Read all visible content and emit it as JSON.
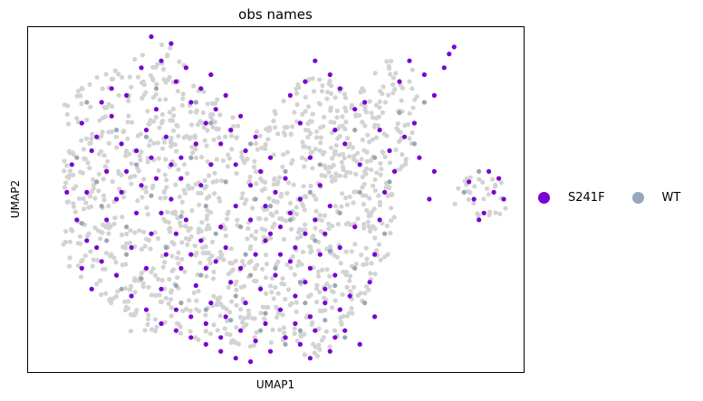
{
  "chart_data": {
    "type": "scatter",
    "title": "obs names",
    "xlabel": "UMAP1",
    "ylabel": "UMAP2",
    "xlim": [
      0,
      100
    ],
    "ylim": [
      0,
      100
    ],
    "grid": false,
    "ticks": false,
    "legend_position": "right",
    "series": [
      {
        "name": "WT",
        "color": "#96a8ba",
        "background_color": "#d3d3d3",
        "values": [
          [
            12,
            78
          ],
          [
            18,
            70
          ],
          [
            22,
            60
          ],
          [
            25,
            51
          ],
          [
            31,
            45
          ],
          [
            38,
            40
          ],
          [
            44,
            34
          ],
          [
            50,
            30
          ],
          [
            15,
            48
          ],
          [
            20,
            42
          ],
          [
            28,
            36
          ],
          [
            35,
            28
          ],
          [
            42,
            22
          ],
          [
            48,
            17
          ],
          [
            55,
            12
          ],
          [
            60,
            15
          ],
          [
            10,
            62
          ],
          [
            14,
            55
          ],
          [
            24,
            68
          ],
          [
            33,
            62
          ],
          [
            40,
            55
          ],
          [
            46,
            50
          ],
          [
            53,
            44
          ],
          [
            58,
            38
          ],
          [
            62,
            25
          ],
          [
            66,
            30
          ],
          [
            56,
            20
          ],
          [
            37,
            72
          ],
          [
            45,
            66
          ],
          [
            52,
            58
          ],
          [
            57,
            52
          ],
          [
            63,
            46
          ],
          [
            66,
            70
          ],
          [
            70,
            62
          ],
          [
            75,
            75
          ],
          [
            78,
            66
          ],
          [
            72,
            40
          ],
          [
            68,
            20
          ],
          [
            30,
            25
          ],
          [
            20,
            34
          ],
          [
            26,
            82
          ],
          [
            34,
            78
          ],
          [
            16,
            38
          ],
          [
            11,
            43
          ],
          [
            36,
            48
          ],
          [
            43,
            42
          ],
          [
            49,
            48
          ],
          [
            55,
            26
          ],
          [
            64,
            10
          ],
          [
            61,
            35
          ],
          [
            59,
            60
          ],
          [
            67,
            52
          ],
          [
            73,
            55
          ],
          [
            80,
            78
          ],
          [
            88,
            52
          ],
          [
            91,
            58
          ],
          [
            52,
            8
          ],
          [
            47,
            12
          ],
          [
            41,
            15
          ],
          [
            36,
            18
          ],
          [
            31,
            20
          ],
          [
            23,
            27
          ],
          [
            19,
            24
          ],
          [
            45,
            28
          ]
        ]
      },
      {
        "name": "S241F",
        "color": "#7b00d4",
        "values": [
          [
            11,
            72
          ],
          [
            13,
            64
          ],
          [
            16,
            58
          ],
          [
            19,
            52
          ],
          [
            22,
            46
          ],
          [
            25,
            40
          ],
          [
            28,
            34
          ],
          [
            31,
            30
          ],
          [
            34,
            25
          ],
          [
            37,
            20
          ],
          [
            40,
            16
          ],
          [
            43,
            12
          ],
          [
            46,
            9
          ],
          [
            49,
            6
          ],
          [
            52,
            10
          ],
          [
            55,
            8
          ],
          [
            58,
            12
          ],
          [
            61,
            6
          ],
          [
            63,
            18
          ],
          [
            60,
            24
          ],
          [
            57,
            30
          ],
          [
            54,
            36
          ],
          [
            51,
            42
          ],
          [
            48,
            48
          ],
          [
            45,
            54
          ],
          [
            42,
            60
          ],
          [
            39,
            66
          ],
          [
            36,
            72
          ],
          [
            33,
            78
          ],
          [
            30,
            84
          ],
          [
            27,
            90
          ],
          [
            25,
            97
          ],
          [
            29,
            95
          ],
          [
            23,
            88
          ],
          [
            20,
            80
          ],
          [
            17,
            74
          ],
          [
            14,
            68
          ],
          [
            9,
            60
          ],
          [
            8,
            52
          ],
          [
            10,
            44
          ],
          [
            12,
            38
          ],
          [
            15,
            32
          ],
          [
            18,
            28
          ],
          [
            21,
            22
          ],
          [
            24,
            18
          ],
          [
            27,
            14
          ],
          [
            30,
            12
          ],
          [
            33,
            10
          ],
          [
            36,
            8
          ],
          [
            39,
            6
          ],
          [
            42,
            4
          ],
          [
            45,
            3
          ],
          [
            48,
            14
          ],
          [
            51,
            18
          ],
          [
            54,
            22
          ],
          [
            57,
            16
          ],
          [
            60,
            20
          ],
          [
            62,
            28
          ],
          [
            59,
            34
          ],
          [
            56,
            40
          ],
          [
            53,
            46
          ],
          [
            50,
            52
          ],
          [
            47,
            58
          ],
          [
            44,
            64
          ],
          [
            41,
            70
          ],
          [
            38,
            76
          ],
          [
            35,
            82
          ],
          [
            32,
            88
          ],
          [
            26,
            76
          ],
          [
            24,
            70
          ],
          [
            22,
            64
          ],
          [
            20,
            58
          ],
          [
            18,
            50
          ],
          [
            16,
            44
          ],
          [
            14,
            36
          ],
          [
            26,
            56
          ],
          [
            29,
            50
          ],
          [
            32,
            44
          ],
          [
            35,
            38
          ],
          [
            38,
            32
          ],
          [
            41,
            26
          ],
          [
            44,
            20
          ],
          [
            47,
            24
          ],
          [
            50,
            28
          ],
          [
            53,
            32
          ],
          [
            56,
            26
          ],
          [
            58,
            44
          ],
          [
            55,
            50
          ],
          [
            52,
            56
          ],
          [
            49,
            62
          ],
          [
            46,
            68
          ],
          [
            43,
            74
          ],
          [
            40,
            80
          ],
          [
            37,
            86
          ],
          [
            34,
            66
          ],
          [
            31,
            62
          ],
          [
            28,
            68
          ],
          [
            25,
            62
          ],
          [
            23,
            54
          ],
          [
            27,
            46
          ],
          [
            30,
            40
          ],
          [
            33,
            34
          ],
          [
            36,
            30
          ],
          [
            39,
            42
          ],
          [
            42,
            48
          ],
          [
            45,
            44
          ],
          [
            48,
            38
          ],
          [
            51,
            34
          ],
          [
            54,
            14
          ],
          [
            57,
            4
          ],
          [
            62,
            10
          ],
          [
            60,
            40
          ],
          [
            55,
            72
          ],
          [
            57,
            62
          ],
          [
            59,
            54
          ],
          [
            61,
            48
          ],
          [
            63,
            36
          ],
          [
            65,
            22
          ],
          [
            64,
            12
          ],
          [
            66,
            42
          ],
          [
            67,
            60
          ],
          [
            68,
            78
          ],
          [
            71,
            70
          ],
          [
            72,
            52
          ],
          [
            70,
            34
          ],
          [
            69,
            26
          ],
          [
            73,
            64
          ],
          [
            74,
            58
          ],
          [
            56,
            84
          ],
          [
            53,
            80
          ],
          [
            58,
            90
          ],
          [
            61,
            86
          ],
          [
            63,
            82
          ],
          [
            66,
            76
          ],
          [
            62,
            70
          ],
          [
            64,
            66
          ],
          [
            75,
            84
          ],
          [
            77,
            90
          ],
          [
            80,
            86
          ],
          [
            82,
            80
          ],
          [
            78,
            72
          ],
          [
            76,
            68
          ],
          [
            84,
            88
          ],
          [
            85,
            92
          ],
          [
            86,
            94
          ],
          [
            79,
            62
          ],
          [
            82,
            58
          ],
          [
            81,
            50
          ],
          [
            71,
            44
          ],
          [
            70,
            16
          ],
          [
            67,
            8
          ],
          [
            35,
            54
          ],
          [
            37,
            60
          ],
          [
            40,
            36
          ],
          [
            43,
            30
          ],
          [
            46,
            34
          ],
          [
            49,
            40
          ],
          [
            31,
            56
          ],
          [
            29,
            60
          ],
          [
            19,
            66
          ],
          [
            17,
            82
          ],
          [
            15,
            78
          ],
          [
            12,
            52
          ],
          [
            11,
            30
          ],
          [
            13,
            24
          ],
          [
            21,
            36
          ],
          [
            24,
            30
          ],
          [
            27,
            24
          ],
          [
            30,
            18
          ],
          [
            33,
            16
          ],
          [
            36,
            14
          ],
          [
            39,
            10
          ],
          [
            90,
            50
          ],
          [
            92,
            46
          ],
          [
            94,
            52
          ],
          [
            91,
            44
          ],
          [
            95,
            56
          ],
          [
            93,
            58
          ],
          [
            89,
            55
          ],
          [
            96,
            50
          ]
        ]
      }
    ]
  }
}
